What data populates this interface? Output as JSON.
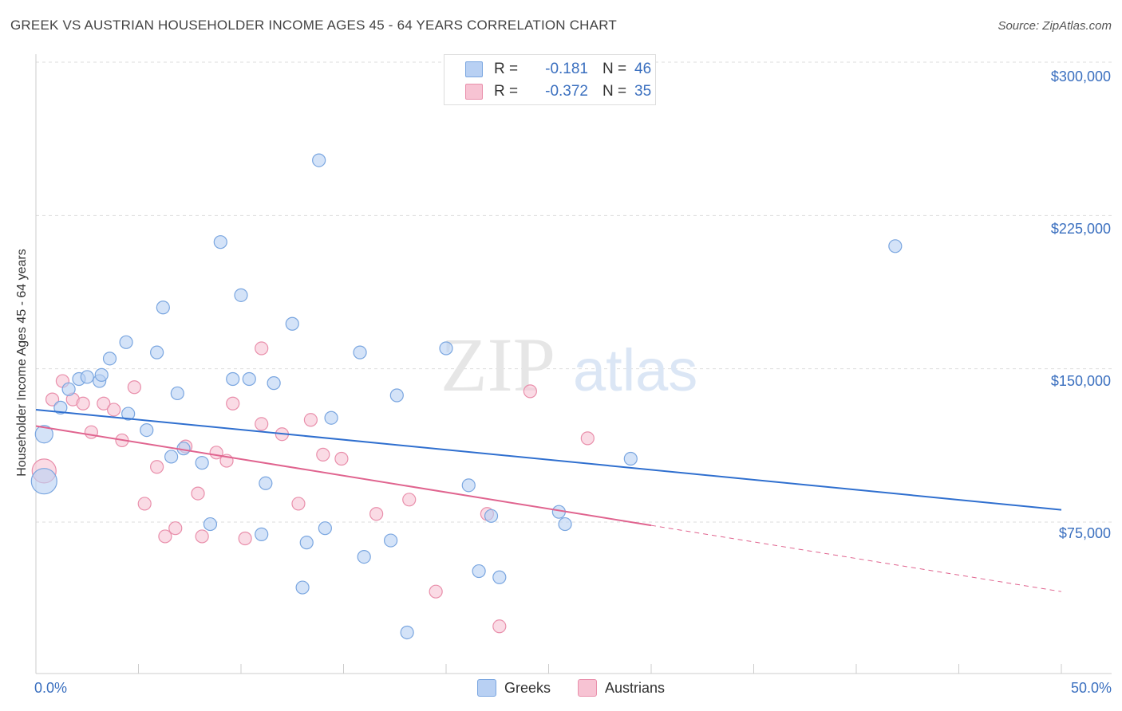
{
  "title": "GREEK VS AUSTRIAN HOUSEHOLDER INCOME AGES 45 - 64 YEARS CORRELATION CHART",
  "source": "Source: ZipAtlas.com",
  "watermark": {
    "zip": "ZIP",
    "atlas": "atlas"
  },
  "legend_top": [
    {
      "r_label": "R =",
      "r_value": "-0.181",
      "n_label": "N =",
      "n_value": "46"
    },
    {
      "r_label": "R =",
      "r_value": "-0.372",
      "n_label": "N =",
      "n_value": "35"
    }
  ],
  "legend_bottom": [
    "Greeks",
    "Austrians"
  ],
  "colors": {
    "greeks_fill": "#b8d0f3",
    "greeks_stroke": "#7aa6e0",
    "greeks_line": "#2f6fcf",
    "austrians_fill": "#f7c3d3",
    "austrians_stroke": "#e98fab",
    "austrians_line": "#e0648f",
    "axis_text": "#3a6fbf",
    "grid": "#dddddd"
  },
  "chart_data": {
    "type": "scatter",
    "title": "GREEK VS AUSTRIAN HOUSEHOLDER INCOME AGES 45 - 64 YEARS CORRELATION CHART",
    "xlabel": "",
    "ylabel": "Householder Income Ages 45 - 64 years",
    "xlim": [
      0,
      50
    ],
    "ylim": [
      0,
      310000
    ],
    "x_tick_labels": [
      "0.0%",
      "50.0%"
    ],
    "y_ticks": [
      75000,
      150000,
      225000,
      300000
    ],
    "y_tick_labels": [
      "$75,000",
      "$150,000",
      "$225,000",
      "$300,000"
    ],
    "grid": true,
    "legend_placement": "top-center",
    "series": [
      {
        "name": "Greeks",
        "r": -0.181,
        "n": 46,
        "trend": {
          "x": [
            0,
            50
          ],
          "y": [
            130000,
            81000
          ],
          "dashed_from": null
        },
        "points": [
          [
            0.4,
            118000,
            11
          ],
          [
            0.4,
            95000,
            16
          ],
          [
            1.2,
            131000,
            8
          ],
          [
            1.6,
            140000,
            8
          ],
          [
            2.1,
            145000,
            8
          ],
          [
            2.5,
            146000,
            8
          ],
          [
            3.1,
            144000,
            8
          ],
          [
            3.2,
            147000,
            8
          ],
          [
            3.6,
            155000,
            8
          ],
          [
            4.4,
            163000,
            8
          ],
          [
            4.5,
            128000,
            8
          ],
          [
            5.4,
            120000,
            8
          ],
          [
            5.9,
            158000,
            8
          ],
          [
            6.2,
            180000,
            8
          ],
          [
            6.9,
            138000,
            8
          ],
          [
            6.6,
            107000,
            8
          ],
          [
            7.2,
            111000,
            8
          ],
          [
            8.1,
            104000,
            8
          ],
          [
            8.5,
            74000,
            8
          ],
          [
            9.0,
            212000,
            8
          ],
          [
            9.6,
            145000,
            8
          ],
          [
            10.0,
            186000,
            8
          ],
          [
            10.4,
            145000,
            8
          ],
          [
            11.2,
            94000,
            8
          ],
          [
            11.0,
            69000,
            8
          ],
          [
            11.6,
            143000,
            8
          ],
          [
            12.5,
            172000,
            8
          ],
          [
            13.0,
            43000,
            8
          ],
          [
            13.2,
            65000,
            8
          ],
          [
            13.8,
            252000,
            8
          ],
          [
            14.4,
            126000,
            8
          ],
          [
            14.1,
            72000,
            8
          ],
          [
            15.8,
            158000,
            8
          ],
          [
            16.0,
            58000,
            8
          ],
          [
            17.3,
            66000,
            8
          ],
          [
            17.6,
            137000,
            8
          ],
          [
            18.1,
            21000,
            8
          ],
          [
            20.0,
            160000,
            8
          ],
          [
            21.1,
            93000,
            8
          ],
          [
            21.6,
            51000,
            8
          ],
          [
            22.2,
            78000,
            8
          ],
          [
            22.6,
            48000,
            8
          ],
          [
            25.5,
            80000,
            8
          ],
          [
            25.8,
            74000,
            8
          ],
          [
            29.0,
            106000,
            8
          ],
          [
            41.9,
            210000,
            8
          ]
        ]
      },
      {
        "name": "Austrians",
        "r": -0.372,
        "n": 35,
        "trend": {
          "x": [
            0,
            50
          ],
          "y": [
            122000,
            41000
          ],
          "solid_to_x": 30
        },
        "points": [
          [
            0.4,
            100000,
            15
          ],
          [
            0.8,
            135000,
            8
          ],
          [
            1.3,
            144000,
            8
          ],
          [
            1.8,
            135000,
            8
          ],
          [
            2.3,
            133000,
            8
          ],
          [
            2.7,
            119000,
            8
          ],
          [
            3.3,
            133000,
            8
          ],
          [
            3.8,
            130000,
            8
          ],
          [
            4.2,
            115000,
            8
          ],
          [
            4.8,
            141000,
            8
          ],
          [
            5.3,
            84000,
            8
          ],
          [
            5.9,
            102000,
            8
          ],
          [
            6.3,
            68000,
            8
          ],
          [
            6.8,
            72000,
            8
          ],
          [
            7.3,
            112000,
            8
          ],
          [
            7.9,
            89000,
            8
          ],
          [
            8.1,
            68000,
            8
          ],
          [
            8.8,
            109000,
            8
          ],
          [
            9.3,
            105000,
            8
          ],
          [
            9.6,
            133000,
            8
          ],
          [
            10.2,
            67000,
            8
          ],
          [
            11.0,
            123000,
            8
          ],
          [
            11.0,
            160000,
            8
          ],
          [
            12.0,
            118000,
            8
          ],
          [
            12.8,
            84000,
            8
          ],
          [
            13.4,
            125000,
            8
          ],
          [
            14.0,
            108000,
            8
          ],
          [
            14.9,
            106000,
            8
          ],
          [
            16.6,
            79000,
            8
          ],
          [
            18.2,
            86000,
            8
          ],
          [
            19.5,
            41000,
            8
          ],
          [
            22.0,
            79000,
            8
          ],
          [
            22.6,
            24000,
            8
          ],
          [
            24.1,
            139000,
            8
          ],
          [
            26.9,
            116000,
            8
          ]
        ]
      }
    ]
  }
}
